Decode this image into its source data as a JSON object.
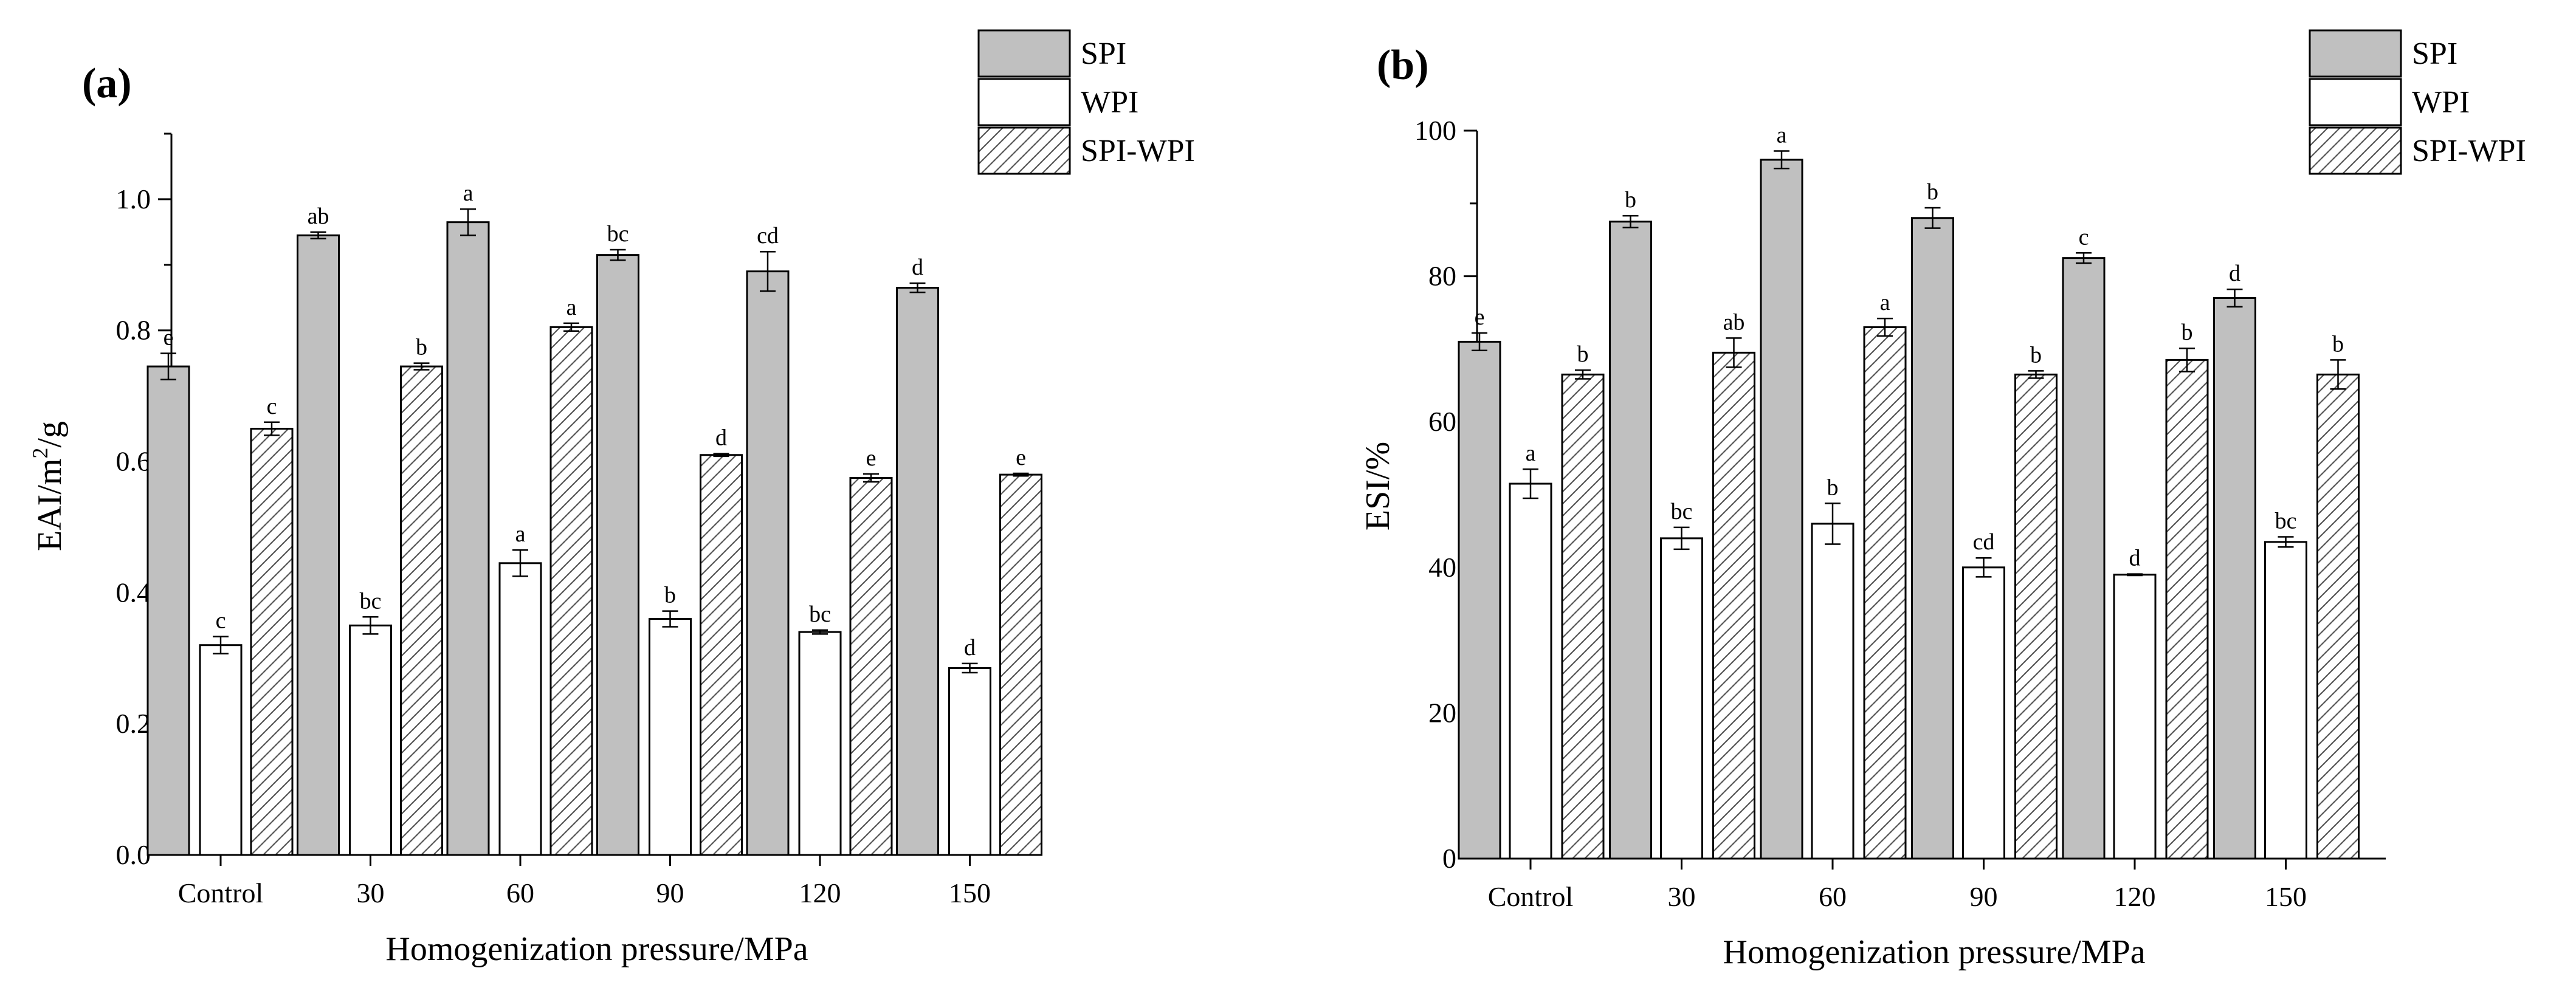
{
  "chart_data": [
    {
      "type": "bar",
      "panel_label": "(a)",
      "xlabel": "Homogenization pressure/MPa",
      "ylabel_main": "EAI/m",
      "ylabel_sup": "2",
      "ylabel_tail": "/g",
      "ylim": [
        0,
        1.1
      ],
      "yticks": [
        "0.0",
        "0.2",
        "0.4",
        "0.6",
        "0.8",
        "1.0"
      ],
      "categories": [
        "Control",
        "30",
        "60",
        "90",
        "120",
        "150"
      ],
      "series": [
        {
          "name": "SPI",
          "fill": "gray",
          "values": [
            0.745,
            0.945,
            0.965,
            0.915,
            0.89,
            0.865
          ],
          "errors": [
            0.02,
            0.005,
            0.02,
            0.008,
            0.03,
            0.007
          ],
          "letters": [
            "e",
            "ab",
            "a",
            "bc",
            "cd",
            "d"
          ]
        },
        {
          "name": "WPI",
          "fill": "white",
          "values": [
            0.32,
            0.35,
            0.445,
            0.36,
            0.34,
            0.285
          ],
          "errors": [
            0.013,
            0.013,
            0.02,
            0.012,
            0.003,
            0.007
          ],
          "letters": [
            "c",
            "bc",
            "a",
            "b",
            "bc",
            "d"
          ]
        },
        {
          "name": "SPI-WPI",
          "fill": "hatch",
          "values": [
            0.65,
            0.745,
            0.805,
            0.61,
            0.575,
            0.58
          ],
          "errors": [
            0.01,
            0.005,
            0.006,
            0.002,
            0.006,
            0.002
          ],
          "letters": [
            "c",
            "b",
            "a",
            "d",
            "e",
            "e"
          ]
        }
      ]
    },
    {
      "type": "bar",
      "panel_label": "(b)",
      "xlabel": "Homogenization pressure/MPa",
      "ylabel_main": "ESI/%",
      "ylabel_sup": "",
      "ylabel_tail": "",
      "ylim": [
        0,
        100
      ],
      "yticks": [
        "0",
        "20",
        "40",
        "60",
        "80",
        "100"
      ],
      "categories": [
        "Control",
        "30",
        "60",
        "90",
        "120",
        "150"
      ],
      "series": [
        {
          "name": "SPI",
          "fill": "gray",
          "values": [
            71,
            87.5,
            96,
            88,
            82.5,
            77
          ],
          "errors": [
            1.2,
            0.8,
            1.2,
            1.4,
            0.7,
            1.2
          ],
          "letters": [
            "e",
            "b",
            "a",
            "b",
            "c",
            "d"
          ]
        },
        {
          "name": "WPI",
          "fill": "white",
          "values": [
            51.5,
            44,
            46,
            40,
            39,
            43.5
          ],
          "errors": [
            2.0,
            1.5,
            2.8,
            1.3,
            0.1,
            0.7
          ],
          "letters": [
            "a",
            "bc",
            "b",
            "cd",
            "d",
            "bc"
          ]
        },
        {
          "name": "SPI-WPI",
          "fill": "hatch",
          "values": [
            66.5,
            69.5,
            73,
            66.5,
            68.5,
            66.5
          ],
          "errors": [
            0.6,
            2.0,
            1.2,
            0.5,
            1.6,
            2.0
          ],
          "letters": [
            "b",
            "ab",
            "a",
            "b",
            "b",
            "b"
          ]
        }
      ]
    }
  ]
}
